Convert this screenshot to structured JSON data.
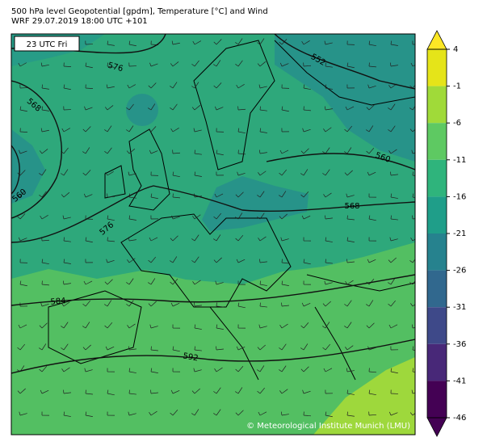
{
  "header": {
    "title": "500 hPa level Geopotential [gpdm], Temperature [°C] and Wind",
    "subtitle": "WRF 29.07.2019 18:00 UTC +101"
  },
  "map": {
    "time_label": "23 UTC Fri",
    "contour_labels": [
      576,
      552,
      568,
      560,
      560,
      576,
      568,
      584,
      592
    ],
    "credit": "© Meteorological Institute Munich (LMU)"
  },
  "colorbar": {
    "ticks": [
      4,
      -1,
      -6,
      -11,
      -16,
      -21,
      -26,
      -31,
      -36,
      -41,
      -46
    ],
    "colors": [
      "#e5e419",
      "#a0da39",
      "#5ec962",
      "#2fb47c",
      "#1f9e89",
      "#26828e",
      "#31688e",
      "#3e4989",
      "#482878",
      "#440154"
    ],
    "extend_colors": [
      "#fde725",
      "#440154"
    ]
  }
}
